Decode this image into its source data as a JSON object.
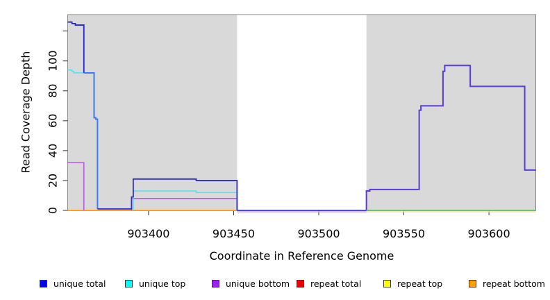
{
  "figure": {
    "x_axis_label": "Coordinate in Reference Genome",
    "y_axis_label": "Read Coverage Depth"
  },
  "colors": {
    "plot_bg": "#d9d9d9",
    "frame": "#878787",
    "tick": "#333333",
    "text": "#000000"
  },
  "legend": {
    "position": "bottom",
    "items": [
      {
        "label": "unique total",
        "color": "#0000ee"
      },
      {
        "label": "unique top",
        "color": "#00ffff"
      },
      {
        "label": "unique bottom",
        "color": "#a020f0"
      },
      {
        "label": "repeat total",
        "color": "#ee0000"
      },
      {
        "label": "repeat top",
        "color": "#ffff00"
      },
      {
        "label": "repeat bottom",
        "color": "#ffa100"
      }
    ]
  },
  "chart_data": {
    "type": "line",
    "subtype": "step-coverage",
    "title": "",
    "xlabel": "Coordinate in Reference Genome",
    "ylabel": "Read Coverage Depth",
    "xlim": [
      903352.5,
      903627.5
    ],
    "ylim": [
      0,
      131
    ],
    "x_ticks": [
      903400,
      903450,
      903500,
      903550,
      903600
    ],
    "y_ticks": [
      0,
      20,
      40,
      60,
      80,
      100
    ],
    "y_ticks_unlabeled": [
      120
    ],
    "grid": false,
    "shaded_regions": [
      [
        903352.5,
        903452
      ],
      [
        903528,
        903627.5
      ]
    ],
    "white_gap_region": [
      903452,
      903528
    ],
    "series": [
      {
        "name": "unique total",
        "color": "#2323d6",
        "steps": [
          [
            903353,
            126
          ],
          [
            903355,
            125
          ],
          [
            903357,
            124
          ],
          [
            903362,
            92
          ],
          [
            903368,
            62
          ],
          [
            903369,
            61
          ],
          [
            903370,
            1
          ],
          [
            903390,
            9
          ],
          [
            903391,
            21
          ],
          [
            903428,
            20
          ],
          [
            903452,
            0
          ],
          [
            903528,
            13
          ],
          [
            903530,
            14
          ],
          [
            903559,
            67
          ],
          [
            903560,
            70
          ],
          [
            903573,
            93
          ],
          [
            903574,
            97
          ],
          [
            903589,
            83
          ],
          [
            903621,
            27
          ],
          [
            903627,
            27
          ]
        ]
      },
      {
        "name": "unique top",
        "color": "#58e2ec",
        "steps": [
          [
            903353,
            94
          ],
          [
            903355,
            93
          ],
          [
            903356,
            92
          ],
          [
            903368,
            62
          ],
          [
            903369,
            61
          ],
          [
            903370,
            1
          ],
          [
            903391,
            13
          ],
          [
            903428,
            12
          ],
          [
            903452,
            0
          ],
          [
            903627,
            0
          ]
        ]
      },
      {
        "name": "unique bottom",
        "color": "#b55ce3",
        "steps": [
          [
            903353,
            32
          ],
          [
            903362,
            0
          ],
          [
            903390,
            8
          ],
          [
            903452,
            0
          ],
          [
            903528,
            13
          ],
          [
            903530,
            14
          ],
          [
            903559,
            67
          ],
          [
            903560,
            70
          ],
          [
            903573,
            93
          ],
          [
            903574,
            97
          ],
          [
            903589,
            83
          ],
          [
            903621,
            27
          ],
          [
            903627,
            27
          ]
        ]
      },
      {
        "name": "repeat total",
        "color": "#ee0000",
        "steps": [
          [
            903353,
            0
          ],
          [
            903627,
            0
          ]
        ]
      },
      {
        "name": "repeat top",
        "color": "#ffff00",
        "steps": [
          [
            903353,
            0
          ],
          [
            903627,
            0
          ]
        ]
      },
      {
        "name": "repeat bottom",
        "color": "#ff9d00",
        "steps": [
          [
            903353,
            0
          ],
          [
            903627,
            0
          ]
        ]
      }
    ],
    "render_segments": [
      {
        "name": "baseline-orange-left",
        "color": "#ff9d26",
        "w": 2,
        "dy": 0,
        "pts": [
          [
            903352.5,
            0
          ],
          [
            903452,
            0
          ]
        ]
      },
      {
        "name": "baseline-lavender-gap",
        "color": "#cfa0ea",
        "w": 1.6,
        "dy": 2,
        "pts": [
          [
            903452,
            0
          ],
          [
            903528,
            0
          ]
        ]
      },
      {
        "name": "baseline-blue-gap",
        "color": "#3535cf",
        "w": 1.8,
        "dy": 0,
        "pts": [
          [
            903452,
            0
          ],
          [
            903528,
            0
          ]
        ]
      },
      {
        "name": "baseline-yellow-right",
        "color": "#f2e296",
        "w": 1.6,
        "dy": 2,
        "pts": [
          [
            903528,
            0
          ],
          [
            903627.5,
            0
          ]
        ]
      },
      {
        "name": "baseline-green-right",
        "color": "#57ba6d",
        "w": 1.8,
        "dy": 0,
        "pts": [
          [
            903528,
            0
          ],
          [
            903627.5,
            0
          ]
        ]
      },
      {
        "name": "purple-32-level",
        "color": "#b55ce3",
        "w": 1.6,
        "dy": 0,
        "pts": [
          [
            903352.5,
            32
          ],
          [
            903362,
            32
          ],
          [
            903362,
            0
          ]
        ]
      },
      {
        "name": "purple-8-level",
        "color": "#b55ce3",
        "w": 1.6,
        "dy": 0,
        "pts": [
          [
            903390,
            0
          ],
          [
            903390,
            8
          ],
          [
            903452,
            8
          ],
          [
            903452,
            0
          ]
        ]
      },
      {
        "name": "cyan-92-level",
        "color": "#58e2ec",
        "w": 1.6,
        "dy": 0,
        "pts": [
          [
            903352.5,
            94
          ],
          [
            903355,
            94
          ],
          [
            903355,
            93
          ],
          [
            903356,
            93
          ],
          [
            903356,
            92
          ],
          [
            903363,
            92
          ]
        ]
      },
      {
        "name": "cyan-13-level",
        "color": "#58e2ec",
        "w": 1.6,
        "dy": 0,
        "pts": [
          [
            903391,
            0
          ],
          [
            903391,
            13
          ],
          [
            903428,
            13
          ],
          [
            903428,
            12
          ],
          [
            903452,
            12
          ],
          [
            903452,
            0
          ]
        ]
      },
      {
        "name": "blue-top",
        "color": "#2323d6",
        "w": 1.8,
        "dy": 0,
        "pts": [
          [
            903352.5,
            126
          ],
          [
            903355,
            126
          ],
          [
            903355,
            125
          ],
          [
            903357,
            125
          ],
          [
            903357,
            124
          ],
          [
            903362,
            124
          ],
          [
            903362,
            92
          ]
        ]
      },
      {
        "name": "blue-descent",
        "color": "#3e78f5",
        "w": 2,
        "dy": 0,
        "pts": [
          [
            903362,
            92
          ],
          [
            903368,
            92
          ],
          [
            903368,
            62
          ],
          [
            903369,
            62
          ],
          [
            903369,
            61
          ],
          [
            903370,
            61
          ],
          [
            903370,
            1
          ]
        ]
      },
      {
        "name": "blue-mid",
        "color": "#2a2ad9",
        "w": 1.8,
        "dy": 0,
        "pts": [
          [
            903370,
            1
          ],
          [
            903390,
            1
          ],
          [
            903390,
            9
          ],
          [
            903391,
            9
          ],
          [
            903391,
            21
          ],
          [
            903428,
            21
          ],
          [
            903428,
            20
          ],
          [
            903452,
            20
          ],
          [
            903452,
            0
          ]
        ]
      },
      {
        "name": "violet-right",
        "color": "#5b3be0",
        "w": 2,
        "dy": 0,
        "pts": [
          [
            903528,
            0
          ],
          [
            903528,
            13
          ],
          [
            903530,
            13
          ],
          [
            903530,
            14
          ],
          [
            903559,
            14
          ],
          [
            903559,
            67
          ],
          [
            903560,
            67
          ],
          [
            903560,
            70
          ],
          [
            903573,
            70
          ],
          [
            903573,
            93
          ],
          [
            903574,
            93
          ],
          [
            903574,
            97
          ],
          [
            903589,
            97
          ],
          [
            903589,
            83
          ],
          [
            903621,
            83
          ],
          [
            903621,
            27
          ],
          [
            903627.5,
            27
          ]
        ]
      }
    ]
  }
}
